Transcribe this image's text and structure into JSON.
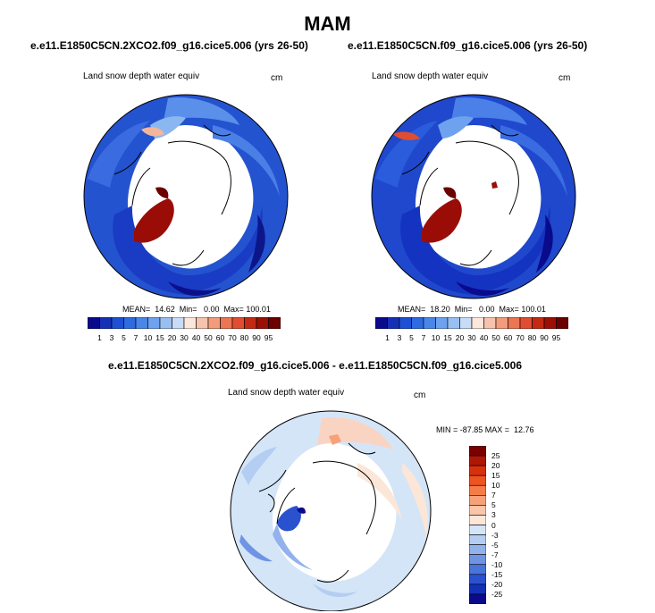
{
  "figure": {
    "season": "MAM"
  },
  "panels": [
    {
      "title": "e.e11.E1850C5CN.2XCO2.f09_g16.cice5.006 (yrs 26-50)",
      "variable": "Land snow depth water equiv",
      "units": "cm",
      "stats": "MEAN=  14.62  Min=   0.00  Max= 100.01"
    },
    {
      "title": "e.e11.E1850C5CN.f09_g16.cice5.006 (yrs 26-50)",
      "variable": "Land snow depth water equiv",
      "units": "cm",
      "stats": "MEAN=  18.20  Min=   0.00  Max= 100.01"
    },
    {
      "title": "e.e11.E1850C5CN.2XCO2.f09_g16.cice5.006 - e.e11.E1850C5CN.f09_g16.cice5.006",
      "variable": "Land snow depth water equiv",
      "units": "cm",
      "stats": "MIN = -87.85 MAX =  12.76"
    }
  ],
  "colorbars": {
    "absolute": {
      "labels": [
        "1",
        "3",
        "5",
        "7",
        "10",
        "15",
        "20",
        "30",
        "40",
        "50",
        "60",
        "70",
        "80",
        "90",
        "95"
      ],
      "colors": [
        "#0a0a8c",
        "#1530b4",
        "#1f4fd2",
        "#2e6ae0",
        "#4a85e8",
        "#6fa2ee",
        "#98bff2",
        "#c9dcf7",
        "#fbe7dc",
        "#f6c3ae",
        "#f29c7c",
        "#ec7553",
        "#e04d30",
        "#c22a14",
        "#9a0f06",
        "#6b0000"
      ]
    },
    "difference": {
      "labels": [
        "25",
        "20",
        "15",
        "10",
        "7",
        "5",
        "3",
        "0",
        "-3",
        "-5",
        "-7",
        "-10",
        "-15",
        "-20",
        "-25"
      ],
      "colors": [
        "#7a0000",
        "#b01605",
        "#d8300d",
        "#ee5320",
        "#f47c47",
        "#f7a179",
        "#fac5a9",
        "#fbe6d8",
        "#d4e5f8",
        "#b4cdf2",
        "#93b2ec",
        "#6f94e4",
        "#4a74dc",
        "#2a52cf",
        "#1330b8",
        "#0a0a8c"
      ]
    }
  }
}
